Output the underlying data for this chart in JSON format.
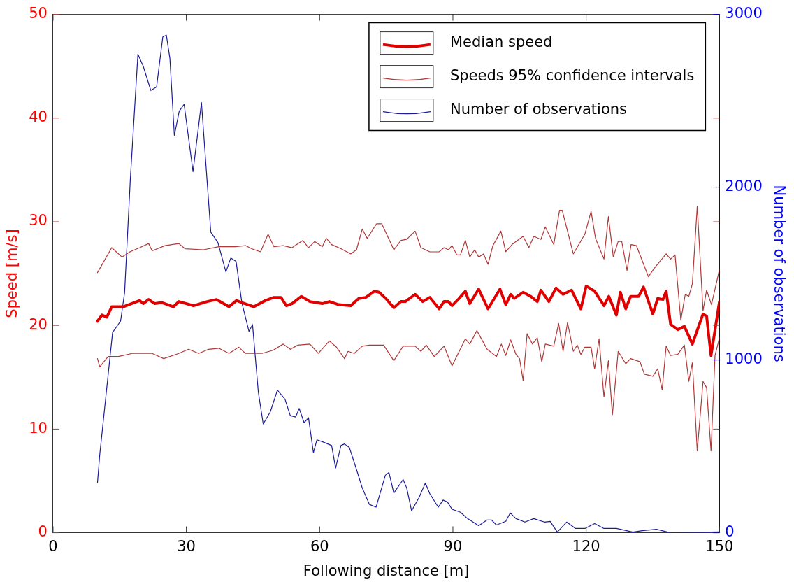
{
  "chart_data": {
    "type": "line",
    "xlabel": "Following distance [m]",
    "ylabel": "Speed [m/s]",
    "y2label": "Number of observations",
    "xlim": [
      0,
      150
    ],
    "xticks": [
      0,
      30,
      60,
      90,
      120,
      150
    ],
    "ylim": [
      0,
      50
    ],
    "yticks": [
      0,
      10,
      20,
      30,
      40,
      50
    ],
    "y2lim": [
      0,
      3000
    ],
    "y2ticks": [
      0,
      1000,
      2000,
      3000
    ],
    "grid": false,
    "legend": "top right",
    "marker": "none",
    "line_style": "solid",
    "series": [
      {
        "name": "Median speed",
        "color": "#e00000",
        "x": [
          10,
          11,
          12.1,
          13.2,
          15.8,
          19.5,
          20.3,
          21.5,
          22.9,
          24.5,
          27.1,
          28.3,
          31.6,
          34.7,
          36.8,
          39.6,
          41.3,
          42.5,
          45.2,
          47.8,
          49.7,
          51.3,
          52.5,
          53.8,
          55.9,
          57.8,
          60.6,
          62.2,
          64.3,
          67,
          68.8,
          70.4,
          72.3,
          73.4,
          75.1,
          76.7,
          78.3,
          79.3,
          81.5,
          83.2,
          84.8,
          86.9,
          88,
          89,
          89.8,
          91.4,
          92.8,
          93.8,
          95.8,
          97.9,
          100.6,
          101.9,
          103,
          103.8,
          105.8,
          107.5,
          109,
          109.8,
          111.6,
          113.2,
          114.8,
          116.7,
          118.8,
          120,
          121.9,
          124,
          125.1,
          126.8,
          127.7,
          128.9,
          130,
          131.8,
          132.9,
          135,
          136.1,
          137.3,
          138,
          139,
          140.6,
          142.1,
          143.9,
          146.3,
          147.1,
          148.1,
          150
        ],
        "values": [
          20.4,
          21.0,
          20.8,
          21.8,
          21.8,
          22.4,
          22.1,
          22.5,
          22.1,
          22.2,
          21.8,
          22.3,
          21.9,
          22.3,
          22.5,
          21.8,
          22.4,
          22.2,
          21.8,
          22.4,
          22.7,
          22.7,
          21.9,
          22.1,
          22.8,
          22.3,
          22.1,
          22.3,
          22.0,
          21.9,
          22.6,
          22.7,
          23.3,
          23.2,
          22.5,
          21.7,
          22.3,
          22.3,
          23.0,
          22.3,
          22.7,
          21.6,
          22.3,
          22.3,
          21.9,
          22.6,
          23.3,
          22.1,
          23.5,
          21.6,
          23.5,
          22.0,
          23.0,
          22.6,
          23.2,
          22.8,
          22.3,
          23.4,
          22.3,
          23.6,
          23.0,
          23.4,
          21.6,
          23.8,
          23.3,
          21.9,
          22.8,
          21.0,
          23.2,
          21.6,
          22.8,
          22.8,
          23.7,
          21.1,
          22.6,
          22.5,
          23.3,
          20.1,
          19.6,
          19.9,
          18.2,
          21.1,
          20.9,
          17.1,
          22.3
        ]
      },
      {
        "name": "Speeds 95% confidence intervals",
        "color": "#b03838",
        "x": [
          10,
          13.2,
          15.5,
          17.3,
          19.5,
          21.5,
          22.3,
          25.2,
          28.3,
          29.7,
          33.9,
          37.3,
          41,
          43.3,
          44.7,
          46.7,
          48.4,
          49.7,
          51.8,
          53.8,
          56.2,
          57.5,
          58.9,
          60.6,
          61.5,
          62.7,
          64.8,
          67,
          68.3,
          69.6,
          70.7,
          72.8,
          74,
          76.7,
          78.3,
          79.6,
          81.5,
          82.8,
          84.8,
          86.9,
          88,
          89,
          89.8,
          90.9,
          91.7,
          92.8,
          93.8,
          94.9,
          95.8,
          96.9,
          97.9,
          99,
          100.8,
          101.9,
          103.3,
          105.8,
          107.1,
          108.2,
          109.8,
          110.8,
          112.7,
          114,
          114.6,
          117.1,
          119.7,
          121.1,
          122.1,
          124,
          125,
          126.1,
          127.2,
          128,
          129.2,
          130.1,
          131.3,
          134,
          135.3,
          138,
          139,
          140,
          141.3,
          142.3,
          143.1,
          143.9,
          145,
          146.3,
          147.1,
          148.2,
          150
        ],
        "values": [
          25.1,
          27.5,
          26.6,
          27.1,
          27.5,
          27.9,
          27.2,
          27.7,
          27.9,
          27.4,
          27.3,
          27.6,
          27.6,
          27.7,
          27.4,
          27.1,
          28.8,
          27.6,
          27.7,
          27.5,
          28.2,
          27.5,
          28.1,
          27.6,
          28.4,
          27.8,
          27.4,
          26.9,
          27.3,
          29.3,
          28.4,
          29.8,
          29.8,
          27.3,
          28.2,
          28.3,
          29.1,
          27.5,
          27.1,
          27.1,
          27.5,
          27.3,
          27.7,
          26.8,
          26.8,
          28.2,
          26.6,
          27.3,
          26.6,
          26.9,
          25.9,
          27.7,
          29.1,
          27.1,
          27.8,
          28.6,
          27.5,
          28.6,
          28.3,
          29.5,
          27.8,
          31.1,
          31.1,
          26.9,
          28.8,
          31.0,
          28.4,
          26.4,
          30.5,
          26.6,
          28.1,
          28.1,
          25.3,
          27.8,
          27.7,
          24.7,
          25.5,
          26.9,
          26.4,
          26.8,
          20.5,
          23.0,
          22.8,
          24.0,
          31.5,
          21.4,
          23.4,
          22.0,
          25.4
        ]
      },
      {
        "color": "#b03838",
        "x": [
          10,
          10.5,
          12.4,
          14.7,
          17.8,
          20,
          22.3,
          24.9,
          28.3,
          30.5,
          32.8,
          35,
          37.3,
          39.6,
          41.8,
          43.3,
          47,
          49.5,
          51.8,
          53.4,
          55.1,
          57.8,
          59.7,
          62.2,
          63.8,
          65.6,
          66.4,
          67.8,
          69.6,
          71.2,
          74.4,
          76.7,
          78.8,
          81.5,
          82.8,
          84,
          85.8,
          88,
          89.8,
          92.8,
          93.8,
          95.4,
          97.7,
          99.8,
          100.9,
          101.9,
          103,
          104.2,
          105,
          105.8,
          106.7,
          107.9,
          109,
          110,
          110.8,
          112.7,
          113.8,
          114.8,
          115.8,
          117.1,
          118,
          118.8,
          119.7,
          121.1,
          121.9,
          122.9,
          124,
          125,
          125.9,
          127.2,
          128.9,
          130,
          132.1,
          133.1,
          135,
          136.1,
          137.1,
          138,
          139,
          140.6,
          142.1,
          143.1,
          143.9,
          145,
          146.3,
          147.1,
          148.1,
          149,
          150
        ],
        "values": [
          16.8,
          16.0,
          17.0,
          17.0,
          17.3,
          17.3,
          17.3,
          16.8,
          17.3,
          17.7,
          17.3,
          17.7,
          17.8,
          17.3,
          17.9,
          17.3,
          17.3,
          17.6,
          18.2,
          17.7,
          18.1,
          18.2,
          17.3,
          18.5,
          17.9,
          16.8,
          17.5,
          17.3,
          18.0,
          18.1,
          18.1,
          16.6,
          18.0,
          18.0,
          17.5,
          18.1,
          17.0,
          18.0,
          16.1,
          18.7,
          18.2,
          19.5,
          17.7,
          17.0,
          18.2,
          17.1,
          18.6,
          17.2,
          16.8,
          14.7,
          19.2,
          18.2,
          18.8,
          16.5,
          18.2,
          18.0,
          20.2,
          17.5,
          20.3,
          17.5,
          18.1,
          17.2,
          17.9,
          17.9,
          15.8,
          18.7,
          13.1,
          16.6,
          11.4,
          17.5,
          16.3,
          16.8,
          16.5,
          15.3,
          15.1,
          15.8,
          13.8,
          18.0,
          17.1,
          17.2,
          18.1,
          14.6,
          16.4,
          7.9,
          14.6,
          14.0,
          7.9,
          17.1,
          18.8
        ]
      },
      {
        "name": "Number of observations",
        "color": "#1c1c96",
        "axis": "y2",
        "x": [
          10,
          10.5,
          13.4,
          15.2,
          16.1,
          17.4,
          19.1,
          20.3,
          22,
          23.3,
          24.7,
          25.5,
          26.3,
          27.3,
          28.4,
          29.5,
          31.5,
          33.4,
          35.5,
          37.1,
          38.9,
          40,
          41.2,
          42.5,
          44.1,
          44.9,
          46.2,
          47.3,
          48.9,
          50.5,
          52.2,
          53.4,
          54.6,
          55.4,
          56.5,
          57.5,
          58.6,
          59.4,
          60.7,
          62.7,
          63.6,
          64.8,
          65.6,
          66.7,
          68,
          69.6,
          71.2,
          72.7,
          74.8,
          75.6,
          76.7,
          78.8,
          79.6,
          80.7,
          82.4,
          83.8,
          84.8,
          86.7,
          87.8,
          88.8,
          89.8,
          91.7,
          93.3,
          95.8,
          97.7,
          98.7,
          99.8,
          101.9,
          102.9,
          104.2,
          106.2,
          108.2,
          110.6,
          111.9,
          113.5,
          115.6,
          117.6,
          119.7,
          121.9,
          124,
          126.8,
          130.5,
          132.6,
          135.8,
          139,
          150
        ],
        "values": [
          290,
          450,
          1160,
          1225,
          1390,
          2050,
          2770,
          2700,
          2560,
          2580,
          2870,
          2880,
          2745,
          2300,
          2440,
          2480,
          2090,
          2490,
          1740,
          1680,
          1510,
          1590,
          1570,
          1330,
          1165,
          1205,
          815,
          630,
          700,
          826,
          773,
          678,
          670,
          720,
          637,
          666,
          464,
          538,
          526,
          505,
          374,
          505,
          514,
          493,
          390,
          259,
          164,
          148,
          333,
          349,
          230,
          308,
          259,
          127,
          205,
          288,
          226,
          148,
          189,
          177,
          136,
          119,
          82,
          41,
          74,
          74,
          45,
          66,
          115,
          82,
          62,
          82,
          62,
          66,
          4,
          62,
          25,
          25,
          53,
          25,
          25,
          4,
          12,
          20,
          0,
          5
        ]
      }
    ]
  }
}
